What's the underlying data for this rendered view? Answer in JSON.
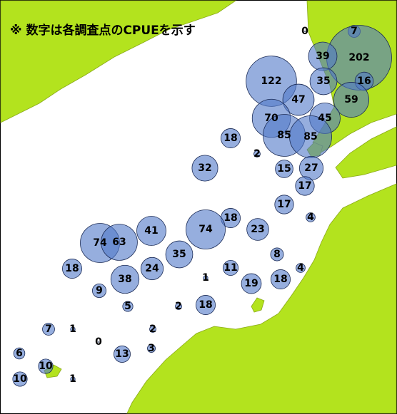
{
  "note": "※ 数字は各調査点のCPUEを示す",
  "stations": [
    0,
    7,
    202,
    39,
    35,
    16,
    122,
    47,
    59,
    70,
    45,
    85,
    85,
    18,
    2,
    32,
    15,
    27,
    17,
    17,
    18,
    4,
    74,
    23,
    41,
    74,
    63,
    35,
    8,
    18,
    24,
    11,
    4,
    1,
    38,
    19,
    18,
    9,
    5,
    2,
    18,
    7,
    1,
    2,
    0,
    3,
    13,
    6,
    10,
    10,
    1
  ]
}
